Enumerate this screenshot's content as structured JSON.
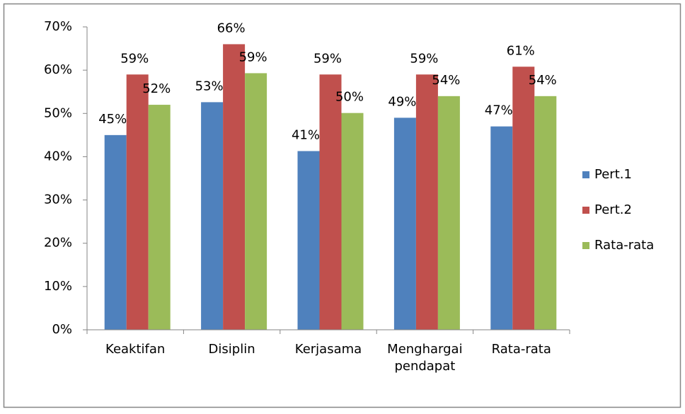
{
  "chart_data": {
    "type": "bar",
    "categories": [
      "Keaktifan",
      "Disiplin",
      "Kerjasama",
      "Menghargai pendapat",
      "Rata-rata"
    ],
    "series": [
      {
        "name": "Pert.1",
        "color": "#4f81bd",
        "values": [
          45,
          52.6,
          41.3,
          49,
          47
        ],
        "value_labels": [
          "45%",
          "53%",
          "41%",
          "49%",
          "47%"
        ]
      },
      {
        "name": "Pert.2",
        "color": "#c0504d",
        "values": [
          59,
          66,
          59,
          59,
          60.8
        ],
        "value_labels": [
          "59%",
          "66%",
          "59%",
          "59%",
          "61%"
        ]
      },
      {
        "name": "Rata-rata",
        "color": "#9bbb59",
        "values": [
          52,
          59.3,
          50.1,
          54,
          54
        ],
        "value_labels": [
          "52%",
          "59%",
          "50%",
          "54%",
          "54%"
        ]
      }
    ],
    "ylim": [
      0,
      70
    ],
    "yticks": [
      {
        "value": 0,
        "label": "0%"
      },
      {
        "value": 10,
        "label": "10%"
      },
      {
        "value": 20,
        "label": "20%"
      },
      {
        "value": 30,
        "label": "30%"
      },
      {
        "value": 40,
        "label": "40%"
      },
      {
        "value": 50,
        "label": "50%"
      },
      {
        "value": 60,
        "label": "60%"
      },
      {
        "value": 70,
        "label": "70%"
      }
    ],
    "legend": "right"
  }
}
